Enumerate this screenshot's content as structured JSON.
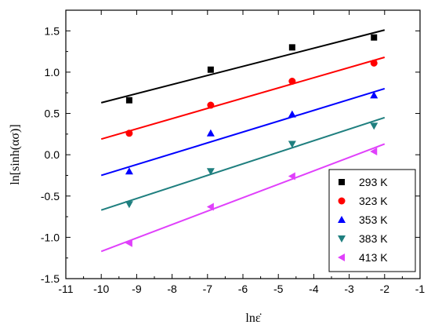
{
  "chart_data": {
    "type": "scatter",
    "title": "",
    "xlabel": "lnε̇",
    "ylabel": "ln[sinh(ασ)]",
    "xlim": [
      -11,
      -1
    ],
    "ylim": [
      -1.5,
      1.75
    ],
    "x_ticks": [
      -11,
      -10,
      -9,
      -8,
      -7,
      -6,
      -5,
      -4,
      -3,
      -2,
      -1
    ],
    "y_ticks": [
      -1.5,
      -1.0,
      -0.5,
      0.0,
      0.5,
      1.0,
      1.5
    ],
    "x_tick_labels": [
      "-11",
      "-10",
      "-9",
      "-8",
      "-7",
      "-6",
      "-5",
      "-4",
      "-3",
      "-2",
      "-1"
    ],
    "y_tick_labels": [
      "-1.5",
      "-1.0",
      "-0.5",
      "0.0",
      "0.5",
      "1.0",
      "1.5"
    ],
    "grid": false,
    "legend_position": "bottom-right",
    "x": [
      -9.21,
      -6.91,
      -4.61,
      -2.3
    ],
    "series": [
      {
        "name": "293 K",
        "marker": "square",
        "color": "#000000",
        "values": [
          0.66,
          1.03,
          1.3,
          1.42
        ],
        "fit": [
          [
            -10,
            0.63
          ],
          [
            -2,
            1.51
          ]
        ]
      },
      {
        "name": "323 K",
        "marker": "circle",
        "color": "#ff0000",
        "values": [
          0.26,
          0.6,
          0.89,
          1.11
        ],
        "fit": [
          [
            -10,
            0.19
          ],
          [
            -2,
            1.18
          ]
        ]
      },
      {
        "name": "353 K",
        "marker": "triangle-up",
        "color": "#0000ff",
        "values": [
          -0.2,
          0.26,
          0.49,
          0.72
        ],
        "fit": [
          [
            -10,
            -0.25
          ],
          [
            -2,
            0.8
          ]
        ]
      },
      {
        "name": "383 K",
        "marker": "triangle-down",
        "color": "#1f7f7f",
        "values": [
          -0.6,
          -0.2,
          0.13,
          0.35
        ],
        "fit": [
          [
            -10,
            -0.67
          ],
          [
            -2,
            0.45
          ]
        ]
      },
      {
        "name": "413 K",
        "marker": "triangle-left",
        "color": "#e040fb",
        "values": [
          -1.07,
          -0.63,
          -0.26,
          0.04
        ],
        "fit": [
          [
            -10,
            -1.17
          ],
          [
            -2,
            0.13
          ]
        ]
      }
    ]
  }
}
